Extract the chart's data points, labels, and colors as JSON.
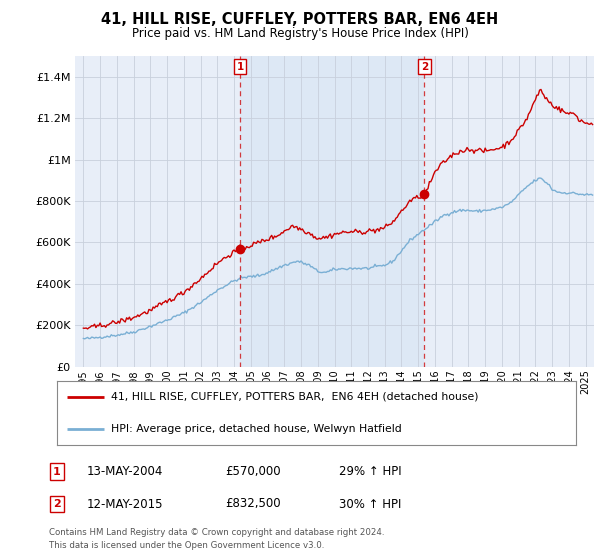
{
  "title": "41, HILL RISE, CUFFLEY, POTTERS BAR, EN6 4EH",
  "subtitle": "Price paid vs. HM Land Registry's House Price Index (HPI)",
  "legend_label_red": "41, HILL RISE, CUFFLEY, POTTERS BAR,  EN6 4EH (detached house)",
  "legend_label_blue": "HPI: Average price, detached house, Welwyn Hatfield",
  "sale1_date": "13-MAY-2004",
  "sale1_price": "£570,000",
  "sale1_hpi": "29% ↑ HPI",
  "sale1_year": 2004.37,
  "sale1_value": 570000,
  "sale2_date": "12-MAY-2015",
  "sale2_price": "£832,500",
  "sale2_hpi": "30% ↑ HPI",
  "sale2_year": 2015.37,
  "sale2_value": 832500,
  "footer": "Contains HM Land Registry data © Crown copyright and database right 2024.\nThis data is licensed under the Open Government Licence v3.0.",
  "red_color": "#cc0000",
  "blue_color": "#7aafd4",
  "highlight_color": "#dde8f5",
  "bg_color": "#e8eef8",
  "grid_color": "#c8d0dc",
  "ylim": [
    0,
    1500000
  ],
  "xlim_start": 1994.5,
  "xlim_end": 2025.5
}
